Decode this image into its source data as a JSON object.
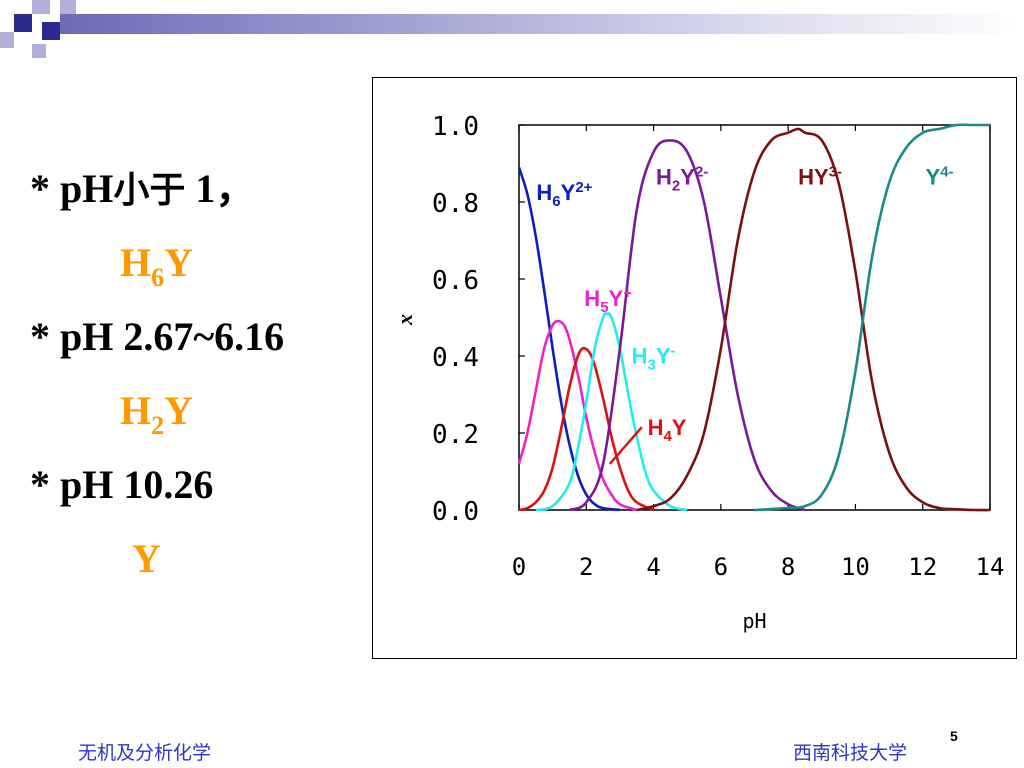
{
  "bullets": [
    {
      "prefix": "* pH",
      "cjk": "小于",
      "suffix": " 1，",
      "species_base": "H",
      "species_sub": "6",
      "species_tail": "Y"
    },
    {
      "prefix": "* pH 2.67~6.16",
      "species_base": "H",
      "species_sub": "2",
      "species_tail": "Y"
    },
    {
      "prefix": "* pH 10.26",
      "species_base": "Y",
      "species_sub": "",
      "species_tail": ""
    }
  ],
  "footer": {
    "left": "无机及分析化学",
    "right": "西南科技大学",
    "page": "5"
  },
  "colors": {
    "species_text": "#ff9900",
    "footer_text": "#3333cc",
    "deco_square": "#2b2b8f",
    "deco_light": "#b0b0d8"
  },
  "chart_data": {
    "type": "line",
    "xlabel": "pH",
    "ylabel": "x",
    "xlim": [
      0,
      14
    ],
    "ylim": [
      0,
      1
    ],
    "xticks": [
      "0",
      "2",
      "4",
      "6",
      "8",
      "10",
      "12",
      "14"
    ],
    "yticks": [
      "0.0",
      "0.2",
      "0.4",
      "0.6",
      "0.8",
      "1.0"
    ],
    "series": [
      {
        "name": "H6Y2+",
        "base": "H",
        "sub": "6",
        "mid": "Y",
        "sup": "2+",
        "color": "#0a1fbf",
        "x": [
          0,
          0.25,
          0.5,
          0.75,
          1,
          1.25,
          1.5,
          1.75,
          2,
          2.25,
          2.5,
          3
        ],
        "y": [
          0.89,
          0.82,
          0.71,
          0.57,
          0.42,
          0.28,
          0.17,
          0.09,
          0.04,
          0.015,
          0.005,
          0
        ]
      },
      {
        "name": "H5Y+",
        "base": "H",
        "sub": "5",
        "mid": "Y",
        "sup": "+",
        "color": "#ee22cc",
        "x": [
          0,
          0.25,
          0.5,
          0.75,
          1,
          1.2,
          1.4,
          1.6,
          1.8,
          2,
          2.25,
          2.5,
          2.75,
          3,
          3.5
        ],
        "y": [
          0.12,
          0.2,
          0.31,
          0.42,
          0.48,
          0.49,
          0.47,
          0.41,
          0.33,
          0.24,
          0.15,
          0.08,
          0.04,
          0.015,
          0
        ]
      },
      {
        "name": "H4Y",
        "base": "H",
        "sub": "4",
        "mid": "Y",
        "sup": "",
        "color": "#dd1111",
        "x": [
          0,
          0.25,
          0.5,
          0.75,
          1,
          1.25,
          1.5,
          1.75,
          1.95,
          2.2,
          2.5,
          2.75,
          3,
          3.25,
          3.5,
          4
        ],
        "y": [
          0,
          0.005,
          0.02,
          0.05,
          0.11,
          0.21,
          0.32,
          0.4,
          0.42,
          0.39,
          0.29,
          0.19,
          0.11,
          0.05,
          0.02,
          0
        ]
      },
      {
        "name": "H3Y-",
        "base": "H",
        "sub": "3",
        "mid": "Y",
        "sup": "-",
        "color": "#22eeee",
        "x": [
          0.5,
          1,
          1.5,
          1.75,
          2,
          2.25,
          2.5,
          2.6,
          2.75,
          3,
          3.25,
          3.5,
          3.75,
          4,
          4.5,
          5
        ],
        "y": [
          0,
          0.01,
          0.07,
          0.16,
          0.28,
          0.42,
          0.5,
          0.51,
          0.5,
          0.42,
          0.3,
          0.19,
          0.1,
          0.05,
          0.01,
          0
        ]
      },
      {
        "name": "H2Y2-",
        "base": "H",
        "sub": "2",
        "mid": "Y",
        "sup": "2-",
        "color": "#7a1a9a",
        "x": [
          1.5,
          2,
          2.5,
          3,
          3.5,
          4,
          4.5,
          5,
          5.5,
          6,
          6.5,
          7,
          7.5,
          8,
          8.5
        ],
        "y": [
          0,
          0.02,
          0.12,
          0.42,
          0.78,
          0.93,
          0.96,
          0.93,
          0.8,
          0.55,
          0.3,
          0.13,
          0.05,
          0.015,
          0
        ]
      },
      {
        "name": "HY3-",
        "base": "H",
        "sub": "",
        "mid": "Y",
        "sup": "3-",
        "color": "#7a1010",
        "x": [
          3.5,
          4,
          4.5,
          5,
          5.5,
          6,
          6.5,
          7,
          7.5,
          8,
          8.3,
          8.5,
          9,
          9.5,
          10,
          10.5,
          11,
          11.5,
          12,
          12.5,
          13,
          13.5,
          14
        ],
        "y": [
          0,
          0.01,
          0.03,
          0.09,
          0.2,
          0.42,
          0.7,
          0.88,
          0.96,
          0.98,
          0.99,
          0.98,
          0.96,
          0.85,
          0.62,
          0.33,
          0.15,
          0.06,
          0.02,
          0.005,
          0.002,
          0,
          0
        ]
      },
      {
        "name": "Y4-",
        "base": "Y",
        "sub": "",
        "mid": "",
        "sup": "4-",
        "color": "#1a8a8a",
        "x": [
          7,
          8,
          8.5,
          9,
          9.5,
          10,
          10.5,
          11,
          11.5,
          12,
          12.5,
          13,
          13.5,
          14
        ],
        "y": [
          0,
          0.005,
          0.01,
          0.04,
          0.14,
          0.36,
          0.66,
          0.85,
          0.94,
          0.98,
          0.99,
          1.0,
          1.0,
          1.0
        ]
      }
    ]
  }
}
